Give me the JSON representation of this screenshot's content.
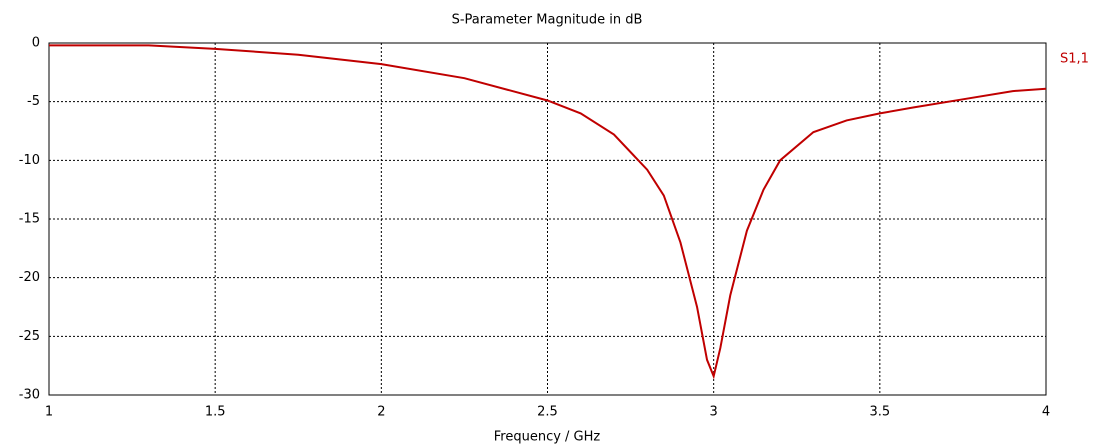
{
  "chart_data": {
    "type": "line",
    "title": "S-Parameter Magnitude in dB",
    "x_label": "Frequency / GHz",
    "x": [
      1,
      1.3,
      1.5,
      1.75,
      2,
      2.25,
      2.5,
      2.6,
      2.7,
      2.8,
      2.85,
      2.9,
      2.95,
      2.98,
      3.0,
      3.02,
      3.05,
      3.1,
      3.15,
      3.2,
      3.3,
      3.4,
      3.5,
      3.6,
      3.75,
      3.9,
      4.0
    ],
    "series": [
      {
        "name": "S1,1",
        "color": "#c00000",
        "values": [
          -0.2,
          -0.2,
          -0.5,
          -1.0,
          -1.8,
          -3.0,
          -4.9,
          -6.0,
          -7.8,
          -10.8,
          -13,
          -17,
          -22.5,
          -27,
          -28.4,
          -26,
          -21.5,
          -16,
          -12.5,
          -10,
          -7.6,
          -6.6,
          -6.0,
          -5.5,
          -4.8,
          -4.1,
          -3.9
        ]
      }
    ],
    "xlim": [
      1,
      4
    ],
    "xticks": [
      1,
      1.5,
      2,
      2.5,
      3,
      3.5,
      4
    ],
    "ylim": [
      -30,
      0
    ],
    "yticks": [
      0,
      -5,
      -10,
      -15,
      -20,
      -25,
      -30
    ],
    "grid": true,
    "legend": "right"
  }
}
